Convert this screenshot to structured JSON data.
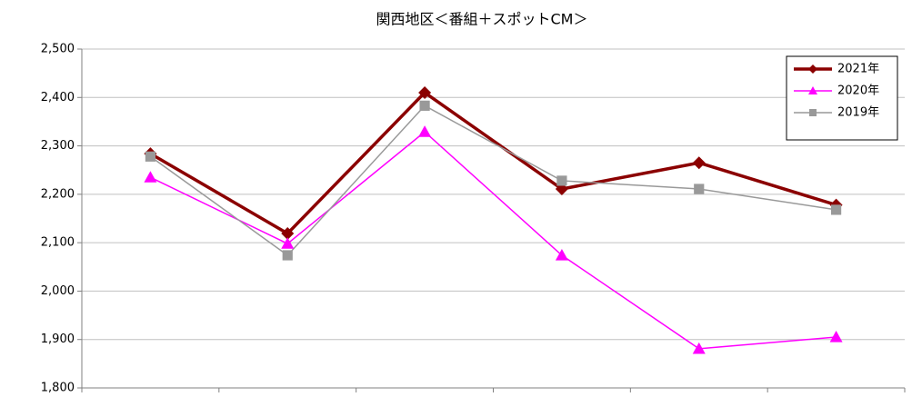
{
  "chart_data": {
    "type": "line",
    "title": "関西地区＜番組＋スポットCM＞",
    "categories": [
      null,
      null,
      null,
      null,
      null,
      null
    ],
    "series": [
      {
        "name": "2021年",
        "color": "#8b0000",
        "marker": "diamond",
        "values": [
          2284,
          2119,
          2410,
          2211,
          2265,
          2178
        ]
      },
      {
        "name": "2020年",
        "color": "#ff00ff",
        "marker": "triangle",
        "values": [
          2235,
          2098,
          2329,
          2074,
          1881,
          1905
        ]
      },
      {
        "name": "2019年",
        "color": "#999999",
        "marker": "square",
        "values": [
          2278,
          2074,
          2383,
          2228,
          2211,
          2168
        ]
      }
    ],
    "ylim": [
      1800,
      2500
    ],
    "yticks": [
      {
        "value": 1800,
        "label": "1,800"
      },
      {
        "value": 1900,
        "label": "1,900"
      },
      {
        "value": 2000,
        "label": "2,000"
      },
      {
        "value": 2100,
        "label": "2,100"
      },
      {
        "value": 2200,
        "label": "2,200"
      },
      {
        "value": 2300,
        "label": "2,300"
      },
      {
        "value": 2400,
        "label": "2,400"
      },
      {
        "value": 2500,
        "label": "2,500"
      }
    ],
    "grid": true,
    "legend": "upper right"
  }
}
